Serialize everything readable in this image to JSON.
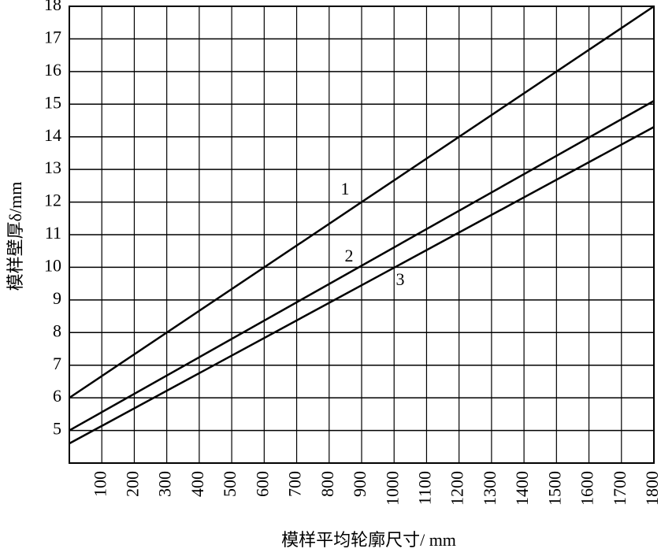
{
  "chart_data": {
    "type": "line",
    "x_label": "模样平均轮廓尺寸/ mm",
    "y_label": "模样壁厚δ/mm",
    "x": [
      0,
      1800
    ],
    "series": [
      {
        "name": "1",
        "color": "#000000",
        "values": [
          6,
          18
        ]
      },
      {
        "name": "2",
        "color": "#000000",
        "values": [
          5,
          15.1
        ]
      },
      {
        "name": "3",
        "color": "#000000",
        "values": [
          4.6,
          14.3
        ]
      }
    ],
    "xlim": [
      0,
      1800
    ],
    "xticks": [
      100,
      200,
      300,
      400,
      500,
      600,
      700,
      800,
      900,
      1000,
      1100,
      1200,
      1300,
      1400,
      1500,
      1600,
      1700,
      1800
    ],
    "ylim": [
      4,
      18
    ],
    "yticks": [
      5,
      6,
      7,
      8,
      9,
      10,
      11,
      12,
      13,
      14,
      15,
      16,
      17,
      18
    ],
    "grid": true
  }
}
